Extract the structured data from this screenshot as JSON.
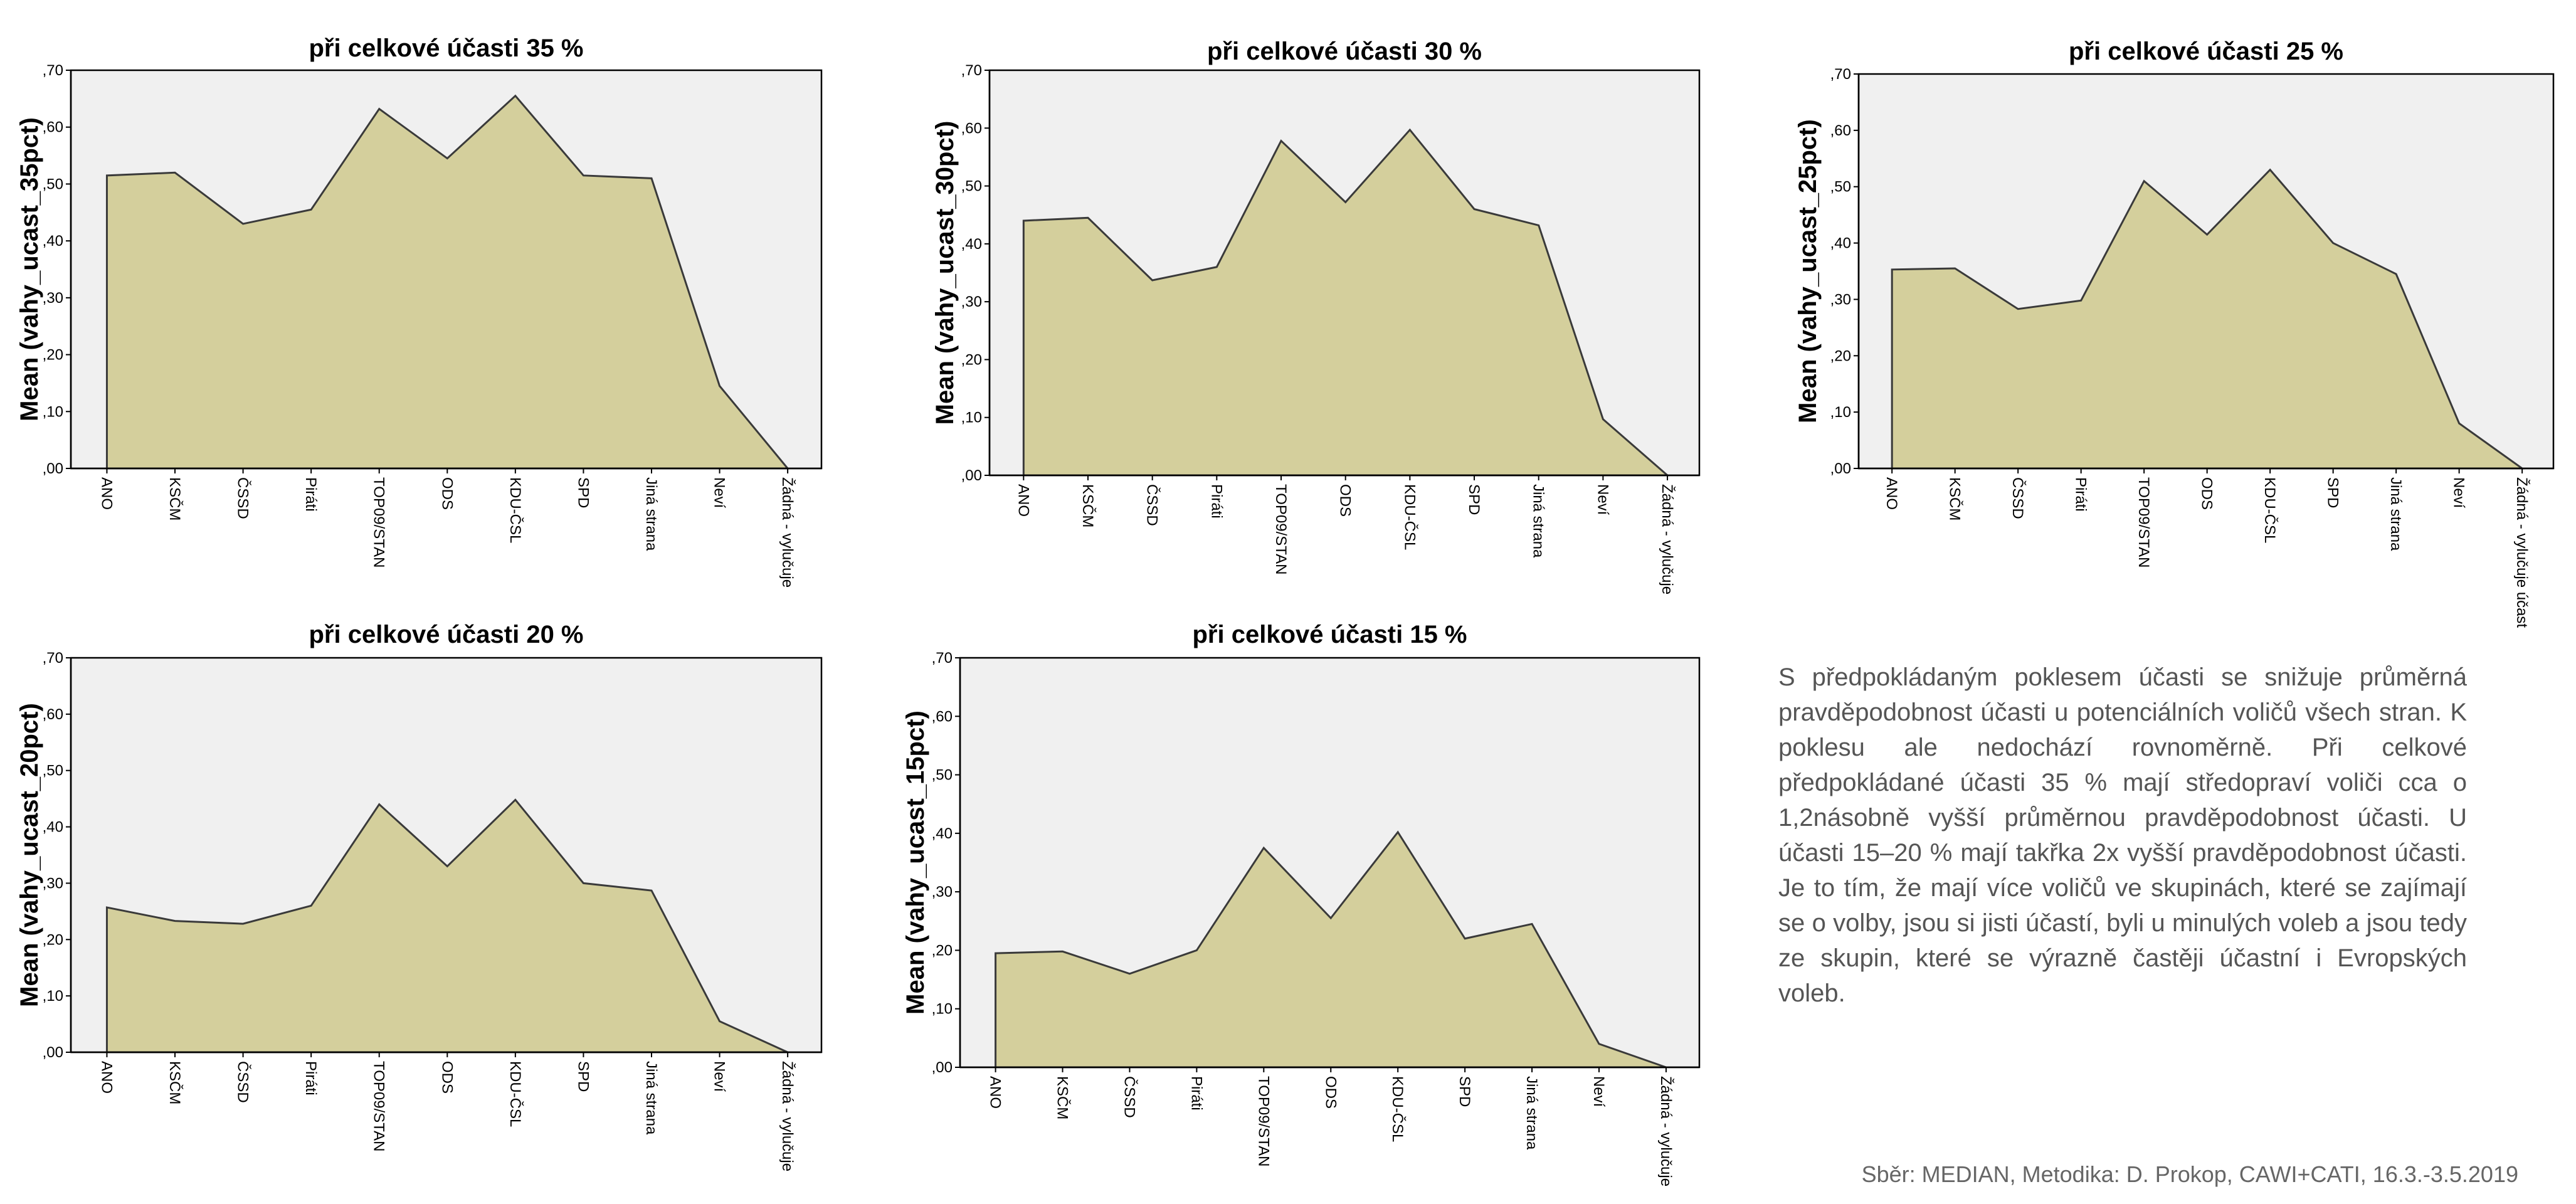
{
  "chart_data": [
    {
      "type": "area",
      "title": "při celkové účasti 35 %",
      "ylabel": "Mean (vahy_ucast_35pct)",
      "ylim": [
        0,
        0.7
      ],
      "ytick_labels": [
        ",00",
        ",10",
        ",20",
        ",30",
        ",40",
        ",50",
        ",60",
        ",70"
      ],
      "categories": [
        "ANO",
        "KSČM",
        "ČSSD",
        "Piráti",
        "TOP09/STAN",
        "ODS",
        "KDU-ČSL",
        "SPD",
        "Jiná strana",
        "Neví",
        "Žádná - vylučuje"
      ],
      "values": [
        0.515,
        0.52,
        0.43,
        0.455,
        0.632,
        0.545,
        0.655,
        0.515,
        0.51,
        0.145,
        0.0
      ]
    },
    {
      "type": "area",
      "title": "při celkové účasti 30 %",
      "ylabel": "Mean (vahy_ucast_30pct)",
      "ylim": [
        0,
        0.7
      ],
      "ytick_labels": [
        ",00",
        ",10",
        ",20",
        ",30",
        ",40",
        ",50",
        ",60",
        ",70"
      ],
      "categories": [
        "ANO",
        "KSČM",
        "ČSSD",
        "Piráti",
        "TOP09/STAN",
        "ODS",
        "KDU-ČSL",
        "SPD",
        "Jiná strana",
        "Neví",
        "Žádná - vylučuje"
      ],
      "values": [
        0.44,
        0.445,
        0.337,
        0.36,
        0.578,
        0.472,
        0.597,
        0.46,
        0.432,
        0.097,
        0.0
      ]
    },
    {
      "type": "area",
      "title": "při celkové účasti 25 %",
      "ylabel": "Mean (vahy_ucast_25pct)",
      "ylim": [
        0,
        0.7
      ],
      "ytick_labels": [
        ",00",
        ",10",
        ",20",
        ",30",
        ",40",
        ",50",
        ",60",
        ",70"
      ],
      "categories": [
        "ANO",
        "KSČM",
        "ČSSD",
        "Piráti",
        "TOP09/STAN",
        "ODS",
        "KDU-ČSL",
        "SPD",
        "Jiná strana",
        "Neví",
        "Žádná - vylučuje účast"
      ],
      "values": [
        0.353,
        0.355,
        0.283,
        0.298,
        0.51,
        0.415,
        0.53,
        0.4,
        0.345,
        0.08,
        0.0
      ]
    },
    {
      "type": "area",
      "title": "při celkové účasti 20 %",
      "ylabel": "Mean (vahy_ucast_20pct)",
      "ylim": [
        0,
        0.7
      ],
      "ytick_labels": [
        ",00",
        ",10",
        ",20",
        ",30",
        ",40",
        ",50",
        ",60",
        ",70"
      ],
      "categories": [
        "ANO",
        "KSČM",
        "ČSSD",
        "Piráti",
        "TOP09/STAN",
        "ODS",
        "KDU-ČSL",
        "SPD",
        "Jiná strana",
        "Neví",
        "Žádná - vylučuje"
      ],
      "values": [
        0.257,
        0.233,
        0.228,
        0.26,
        0.44,
        0.33,
        0.448,
        0.3,
        0.287,
        0.055,
        0.0
      ]
    },
    {
      "type": "area",
      "title": "při celkové účasti 15 %",
      "ylabel": "Mean (vahy_ucast_15pct)",
      "ylim": [
        0,
        0.7
      ],
      "ytick_labels": [
        ",00",
        ",10",
        ",20",
        ",30",
        ",40",
        ",50",
        ",60",
        ",70"
      ],
      "categories": [
        "ANO",
        "KSČM",
        "ČSSD",
        "Piráti",
        "TOP09/STAN",
        "ODS",
        "KDU-ČSL",
        "SPD",
        "Jiná strana",
        "Neví",
        "Žádná - vylučuje"
      ],
      "values": [
        0.195,
        0.198,
        0.16,
        0.2,
        0.375,
        0.255,
        0.402,
        0.22,
        0.245,
        0.04,
        0.0
      ]
    }
  ],
  "note": "S předpokládaným poklesem účasti se snižuje průměrná pravděpodobnost účasti u potenciálních voličů všech stran. K poklesu ale nedochází rovnoměrně. Při celkové předpokládané účasti 35 % mají středopraví voliči cca o 1,2násobně vyšší průměrnou pravděpodobnost účasti. U účasti 15–20 % mají takřka 2x vyšší pravděpodobnost účasti. Je to tím, že mají více voličů ve skupinách, které se zajímají se o volby, jsou si jisti účastí, byli u minulých voleb a jsou tedy ze skupin, které se výrazně častěji účastní i Evropských voleb.",
  "source": "Sběr: MEDIAN, Metodika: D. Prokop, CAWI+CATI, 16.3.-3.5.2019",
  "colors": {
    "area_fill": "#d4cf9c",
    "plot_background": "#f0f0f0",
    "outline": "#3a3a3a"
  }
}
